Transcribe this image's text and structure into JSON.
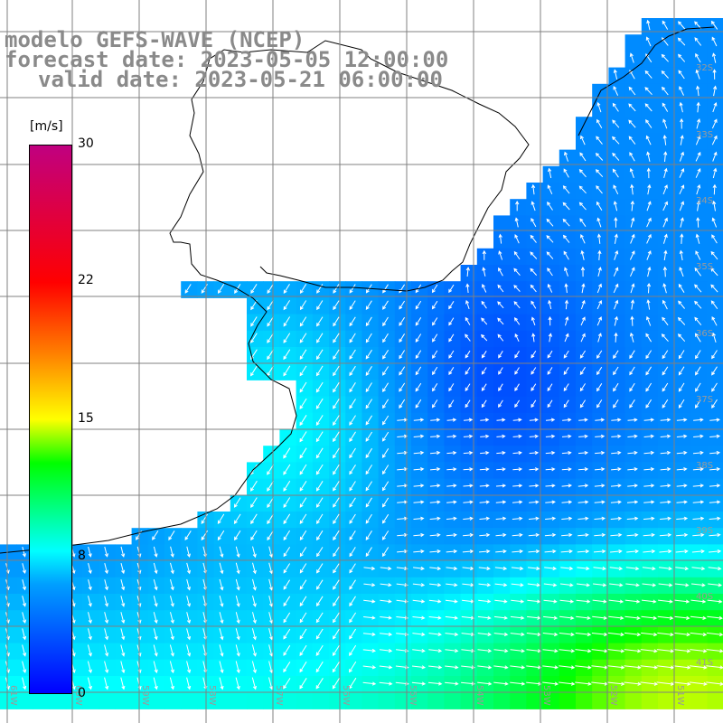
{
  "title": {
    "line1": "modelo GEFS-WAVE (NCEP)",
    "line2": "forecast date: 2023-05-05 12:00:00",
    "line3": "valid date: 2023-05-21 06:00:00"
  },
  "colorbar": {
    "unit": "[m/s]",
    "min": 0,
    "max": 30,
    "ticks": [
      "30",
      "22",
      "15",
      "8",
      "0"
    ],
    "tick_values": [
      30,
      22,
      15,
      8,
      0
    ],
    "colors": [
      "#0000ff",
      "#00a0ff",
      "#00ffff",
      "#00ff00",
      "#ffff00",
      "#ff8000",
      "#ff0000",
      "#c00080"
    ]
  },
  "map": {
    "lat_labels": [
      "32S",
      "33S",
      "34S",
      "35S",
      "36S",
      "37S",
      "38S",
      "39S",
      "40S",
      "41S"
    ],
    "lon_labels": [
      "61W",
      "60W",
      "59W",
      "58W",
      "57W",
      "56W",
      "55W",
      "54W",
      "53W",
      "52W",
      "51W"
    ],
    "land_color": "#ffffff",
    "grid_color": "#808080",
    "arrow_color": "#ffffff"
  }
}
